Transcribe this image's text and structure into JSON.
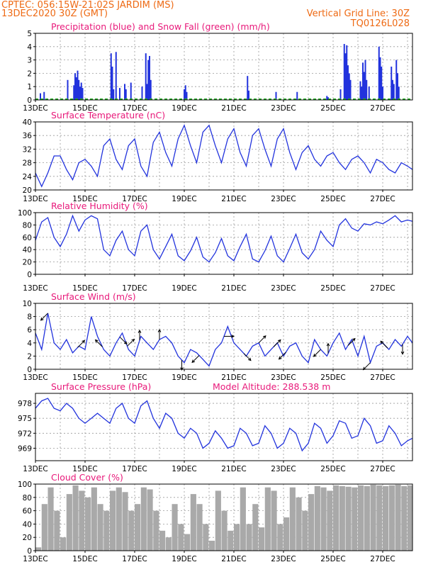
{
  "header": {
    "station_line": "CPTEC:   056:15W-21:02S   JARDIM (MS)",
    "date_line": "13DEC2020 30Z (GMT)",
    "grid_note": "Vertical Grid Line: 30Z",
    "code": "TQ0126L028"
  },
  "colors": {
    "header": "#ee6a14",
    "titles": "#e8197a",
    "series": "#2233dd",
    "snow": "#22aa22",
    "cloud": "#a9a9a9"
  },
  "x_tick_labels": [
    "13DEC",
    "15DEC",
    "17DEC",
    "19DEC",
    "21DEC",
    "23DEC",
    "25DEC",
    "27DEC"
  ],
  "chart_data": [
    {
      "id": "precip",
      "type": "bar",
      "title": "Precipitation (blue) and Snow Fall (green) (mm/h)",
      "x_unit": "day since 13DEC",
      "xlim": [
        0,
        15.2
      ],
      "ylim": [
        0,
        5
      ],
      "yticks": [
        0,
        1,
        2,
        3,
        4,
        5
      ],
      "grid": true,
      "series": [
        {
          "name": "Precipitation",
          "color": "#2233dd",
          "x": [
            0.2,
            0.35,
            1.3,
            1.55,
            1.6,
            1.65,
            1.7,
            1.75,
            1.8,
            1.85,
            1.9,
            3.05,
            3.1,
            3.15,
            3.25,
            3.4,
            3.6,
            3.65,
            3.85,
            4.3,
            4.45,
            4.5,
            4.55,
            4.6,
            4.65,
            6.0,
            6.05,
            6.1,
            8.55,
            8.6,
            9.7,
            10.55,
            11.75,
            11.8,
            12.3,
            12.45,
            12.5,
            12.55,
            12.6,
            12.65,
            12.7,
            13.1,
            13.15,
            13.2,
            13.25,
            13.3,
            13.35,
            13.45,
            13.85,
            13.9,
            13.95,
            14.0,
            14.35,
            14.4,
            14.45,
            14.55,
            14.6,
            14.65
          ],
          "values": [
            0.5,
            0.6,
            1.5,
            1.1,
            2.0,
            1.7,
            2.2,
            1.5,
            1.0,
            1.3,
            0.9,
            3.5,
            2.5,
            0.8,
            3.6,
            0.9,
            1.2,
            0.8,
            1.3,
            1.0,
            3.5,
            1.2,
            3.0,
            3.3,
            1.5,
            0.8,
            1.1,
            0.6,
            1.8,
            0.7,
            0.6,
            0.6,
            0.3,
            0.2,
            0.8,
            4.2,
            3.5,
            4.1,
            2.6,
            2.0,
            1.5,
            1.4,
            1.0,
            2.8,
            2.1,
            3.0,
            1.5,
            1.0,
            4.0,
            3.2,
            2.5,
            1.0,
            2.5,
            1.5,
            1.2,
            3.0,
            2.0,
            1.0
          ]
        },
        {
          "name": "Snow Fall",
          "color": "#22aa22",
          "x": [
            0,
            15.2
          ],
          "values": [
            0,
            0
          ]
        }
      ]
    },
    {
      "id": "temperature",
      "type": "line",
      "title": "Surface Temperature (nC)",
      "x_unit": "day since 13DEC",
      "xlim": [
        0,
        15.2
      ],
      "ylim": [
        20,
        40
      ],
      "yticks": [
        20,
        24,
        28,
        32,
        36,
        40
      ],
      "grid": true,
      "x": [
        0,
        0.25,
        0.5,
        0.75,
        1,
        1.25,
        1.5,
        1.75,
        2,
        2.25,
        2.5,
        2.75,
        3,
        3.25,
        3.5,
        3.75,
        4,
        4.25,
        4.5,
        4.75,
        5,
        5.25,
        5.5,
        5.75,
        6,
        6.25,
        6.5,
        6.75,
        7,
        7.25,
        7.5,
        7.75,
        8,
        8.25,
        8.5,
        8.75,
        9,
        9.25,
        9.5,
        9.75,
        10,
        10.25,
        10.5,
        10.75,
        11,
        11.25,
        11.5,
        11.75,
        12,
        12.25,
        12.5,
        12.75,
        13,
        13.25,
        13.5,
        13.75,
        14,
        14.25,
        14.5,
        14.75,
        15,
        15.2
      ],
      "values": [
        25,
        21,
        25,
        30,
        30,
        26,
        23,
        28,
        29,
        27,
        24,
        33,
        35,
        29,
        26,
        33,
        35,
        27,
        24,
        34,
        37,
        31,
        27,
        35,
        39,
        33,
        28,
        37,
        39,
        33,
        28,
        35,
        38,
        31,
        27,
        36,
        38,
        32,
        27,
        35,
        38,
        31,
        26,
        31,
        33,
        29,
        27,
        30,
        31,
        28,
        26,
        29,
        30,
        28,
        25,
        29,
        28,
        26,
        25,
        28,
        27,
        26
      ]
    },
    {
      "id": "humidity",
      "type": "line",
      "title": "Relative Humidity (%)",
      "x_unit": "day since 13DEC",
      "xlim": [
        0,
        15.2
      ],
      "ylim": [
        0,
        100
      ],
      "yticks": [
        0,
        20,
        40,
        60,
        80,
        100
      ],
      "grid": true,
      "x": [
        0,
        0.25,
        0.5,
        0.75,
        1,
        1.25,
        1.5,
        1.75,
        2,
        2.25,
        2.5,
        2.75,
        3,
        3.25,
        3.5,
        3.75,
        4,
        4.25,
        4.5,
        4.75,
        5,
        5.25,
        5.5,
        5.75,
        6,
        6.25,
        6.5,
        6.75,
        7,
        7.25,
        7.5,
        7.75,
        8,
        8.25,
        8.5,
        8.75,
        9,
        9.25,
        9.5,
        9.75,
        10,
        10.25,
        10.5,
        10.75,
        11,
        11.25,
        11.5,
        11.75,
        12,
        12.25,
        12.5,
        12.75,
        13,
        13.25,
        13.5,
        13.75,
        14,
        14.25,
        14.5,
        14.75,
        15,
        15.2
      ],
      "values": [
        55,
        85,
        92,
        60,
        45,
        65,
        95,
        70,
        88,
        95,
        90,
        40,
        30,
        55,
        70,
        40,
        30,
        70,
        80,
        40,
        25,
        45,
        65,
        30,
        22,
        38,
        60,
        28,
        20,
        35,
        58,
        30,
        22,
        45,
        65,
        25,
        20,
        38,
        62,
        30,
        20,
        42,
        65,
        35,
        25,
        40,
        70,
        55,
        45,
        80,
        90,
        75,
        70,
        82,
        80,
        85,
        82,
        88,
        95,
        85,
        88,
        86
      ]
    },
    {
      "id": "wind",
      "type": "line",
      "title": "Surface Wind (m/s)",
      "x_unit": "day since 13DEC",
      "xlim": [
        0,
        15.2
      ],
      "ylim": [
        0,
        10
      ],
      "yticks": [
        0,
        2,
        4,
        6,
        8,
        10
      ],
      "grid": true,
      "x": [
        0,
        0.25,
        0.5,
        0.75,
        1,
        1.25,
        1.5,
        1.75,
        2,
        2.25,
        2.5,
        2.75,
        3,
        3.25,
        3.5,
        3.75,
        4,
        4.25,
        4.5,
        4.75,
        5,
        5.25,
        5.5,
        5.75,
        6,
        6.25,
        6.5,
        6.75,
        7,
        7.25,
        7.5,
        7.75,
        8,
        8.25,
        8.5,
        8.75,
        9,
        9.25,
        9.5,
        9.75,
        10,
        10.25,
        10.5,
        10.75,
        11,
        11.25,
        11.5,
        11.75,
        12,
        12.25,
        12.5,
        12.75,
        13,
        13.25,
        13.5,
        13.75,
        14,
        14.25,
        14.5,
        14.75,
        15,
        15.2
      ],
      "values": [
        5.5,
        3,
        8.5,
        4,
        3,
        4.5,
        2.5,
        3.5,
        3,
        8,
        5,
        3,
        2,
        4,
        5.5,
        3,
        2,
        5,
        4,
        3,
        4.5,
        5,
        4,
        2,
        1,
        3,
        2.5,
        1.5,
        0.5,
        3,
        4,
        6.5,
        4,
        3,
        2,
        3.5,
        4,
        2,
        3,
        4,
        2,
        3.5,
        4,
        2,
        1,
        4.5,
        3,
        2,
        4,
        5.5,
        3,
        4.5,
        2,
        5,
        1,
        3.5,
        4,
        3,
        4.5,
        3.5,
        5,
        4
      ],
      "arrows": [
        {
          "x": 0.5,
          "dir_deg": 225
        },
        {
          "x": 1.7,
          "dir_deg": 45
        },
        {
          "x": 2.7,
          "dir_deg": 135
        },
        {
          "x": 3.4,
          "dir_deg": 315
        },
        {
          "x": 3.7,
          "dir_deg": 45
        },
        {
          "x": 4.2,
          "dir_deg": 90
        },
        {
          "x": 5.0,
          "dir_deg": 90
        },
        {
          "x": 5.9,
          "dir_deg": 270
        },
        {
          "x": 6.6,
          "dir_deg": 225
        },
        {
          "x": 7.6,
          "dir_deg": 0
        },
        {
          "x": 8.4,
          "dir_deg": 315
        },
        {
          "x": 9.0,
          "dir_deg": 45
        },
        {
          "x": 9.6,
          "dir_deg": 45
        },
        {
          "x": 10.1,
          "dir_deg": 225
        },
        {
          "x": 11.5,
          "dir_deg": 225
        },
        {
          "x": 11.8,
          "dir_deg": 90
        },
        {
          "x": 12.6,
          "dir_deg": 45
        },
        {
          "x": 13.5,
          "dir_deg": 225
        },
        {
          "x": 14.2,
          "dir_deg": 135
        },
        {
          "x": 14.8,
          "dir_deg": 270
        }
      ]
    },
    {
      "id": "pressure",
      "type": "line",
      "title": "Surface Pressure (hPa)",
      "model_altitude": "Model Altitude: 288.538 m",
      "x_unit": "day since 13DEC",
      "xlim": [
        0,
        15.2
      ],
      "ylim": [
        966.5,
        980
      ],
      "yticks": [
        969,
        972,
        975,
        978
      ],
      "grid": true,
      "x": [
        0,
        0.25,
        0.5,
        0.75,
        1,
        1.25,
        1.5,
        1.75,
        2,
        2.25,
        2.5,
        2.75,
        3,
        3.25,
        3.5,
        3.75,
        4,
        4.25,
        4.5,
        4.75,
        5,
        5.25,
        5.5,
        5.75,
        6,
        6.25,
        6.5,
        6.75,
        7,
        7.25,
        7.5,
        7.75,
        8,
        8.25,
        8.5,
        8.75,
        9,
        9.25,
        9.5,
        9.75,
        10,
        10.25,
        10.5,
        10.75,
        11,
        11.25,
        11.5,
        11.75,
        12,
        12.25,
        12.5,
        12.75,
        13,
        13.25,
        13.5,
        13.75,
        14,
        14.25,
        14.5,
        14.75,
        15,
        15.2
      ],
      "values": [
        977,
        978.5,
        979,
        977,
        976.5,
        978,
        977,
        975,
        974,
        975,
        976,
        975,
        974,
        977,
        978,
        975,
        974,
        977.5,
        978.5,
        975,
        973,
        976,
        975,
        972,
        971,
        973,
        972,
        969,
        970,
        972.5,
        971,
        969,
        969.5,
        973,
        972,
        969.5,
        970,
        973.5,
        972,
        969,
        970,
        973,
        972,
        968.5,
        970,
        974,
        973,
        970,
        971.5,
        974.5,
        974,
        971,
        971.5,
        975,
        973.5,
        970,
        970.5,
        973.5,
        972,
        969.5,
        970.5,
        971
      ]
    },
    {
      "id": "cloud",
      "type": "bar",
      "title": "Cloud Cover (%)",
      "x_unit": "day since 13DEC",
      "xlim": [
        0,
        15.2
      ],
      "ylim": [
        0,
        100
      ],
      "yticks": [
        0,
        20,
        40,
        60,
        80,
        100
      ],
      "grid": true,
      "x": [
        0,
        0.25,
        0.5,
        0.75,
        1,
        1.25,
        1.5,
        1.75,
        2,
        2.25,
        2.5,
        2.75,
        3,
        3.25,
        3.5,
        3.75,
        4,
        4.25,
        4.5,
        4.75,
        5,
        5.25,
        5.5,
        5.75,
        6,
        6.25,
        6.5,
        6.75,
        7,
        7.25,
        7.5,
        7.75,
        8,
        8.25,
        8.5,
        8.75,
        9,
        9.25,
        9.5,
        9.75,
        10,
        10.25,
        10.5,
        10.75,
        11,
        11.25,
        11.5,
        11.75,
        12,
        12.25,
        12.5,
        12.75,
        13,
        13.25,
        13.5,
        13.75,
        14,
        14.25,
        14.5,
        14.75,
        15,
        15.2
      ],
      "values": [
        5,
        70,
        95,
        60,
        20,
        85,
        98,
        90,
        80,
        95,
        70,
        60,
        90,
        95,
        88,
        60,
        70,
        95,
        92,
        60,
        30,
        20,
        70,
        40,
        25,
        85,
        70,
        40,
        15,
        90,
        60,
        30,
        40,
        95,
        40,
        70,
        35,
        95,
        90,
        40,
        50,
        95,
        80,
        60,
        85,
        97,
        95,
        90,
        98,
        97,
        96,
        95,
        98,
        97,
        99,
        98,
        97,
        98,
        99,
        97,
        98,
        96
      ]
    }
  ]
}
